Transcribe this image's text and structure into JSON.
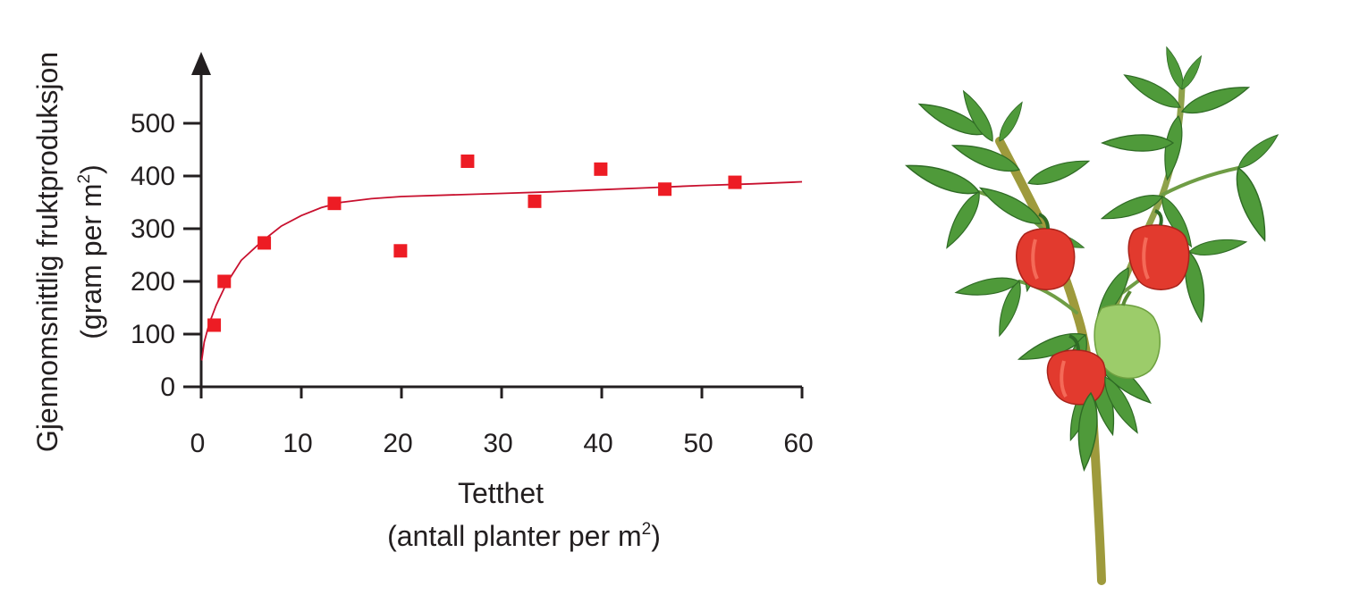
{
  "chart_data": {
    "type": "scatter",
    "title": "",
    "xlabel": "Tetthet",
    "xlabel_sub_prefix": "(antall planter per m",
    "xlabel_sub_sup": "2",
    "xlabel_sub_suffix": ")",
    "ylabel": "Gjennomsnittlig fruktproduksjon",
    "ylabel_sub_prefix": "(gram per m",
    "ylabel_sub_sup": "2",
    "ylabel_sub_suffix": ")",
    "xlim": [
      0,
      60
    ],
    "ylim": [
      0,
      500
    ],
    "x_ticks": [
      0,
      10,
      20,
      30,
      40,
      50,
      60
    ],
    "y_ticks": [
      0,
      100,
      200,
      300,
      400,
      500
    ],
    "grid": false,
    "marker_color": "#ed1c24",
    "curve_color": "#c8102e",
    "axis_color": "#231f20",
    "points": [
      {
        "x": 1.3,
        "y": 117
      },
      {
        "x": 2.3,
        "y": 200
      },
      {
        "x": 6.3,
        "y": 273
      },
      {
        "x": 13.3,
        "y": 348
      },
      {
        "x": 19.9,
        "y": 258
      },
      {
        "x": 26.6,
        "y": 428
      },
      {
        "x": 33.3,
        "y": 352
      },
      {
        "x": 39.9,
        "y": 413
      },
      {
        "x": 46.3,
        "y": 375
      },
      {
        "x": 53.3,
        "y": 388
      }
    ],
    "trend_curve": [
      {
        "x": 0.05,
        "y": 50
      },
      {
        "x": 0.3,
        "y": 85
      },
      {
        "x": 0.8,
        "y": 120
      },
      {
        "x": 1.5,
        "y": 155
      },
      {
        "x": 2.5,
        "y": 195
      },
      {
        "x": 4,
        "y": 240
      },
      {
        "x": 6,
        "y": 275
      },
      {
        "x": 8,
        "y": 305
      },
      {
        "x": 10,
        "y": 325
      },
      {
        "x": 12,
        "y": 340
      },
      {
        "x": 14,
        "y": 350
      },
      {
        "x": 17,
        "y": 357
      },
      {
        "x": 20,
        "y": 361
      },
      {
        "x": 25,
        "y": 364
      },
      {
        "x": 30,
        "y": 367
      },
      {
        "x": 35,
        "y": 370
      },
      {
        "x": 40,
        "y": 374
      },
      {
        "x": 45,
        "y": 378
      },
      {
        "x": 50,
        "y": 382
      },
      {
        "x": 55,
        "y": 385
      },
      {
        "x": 60,
        "y": 389
      }
    ]
  },
  "illustration": {
    "name": "pepper-plant",
    "leaf_color": "#4f9a3a",
    "leaf_dark_color": "#2f6b25",
    "stem_color": "#9e9a3c",
    "red_pepper_color": "#e23a2e",
    "green_pepper_color": "#9ccc6a"
  }
}
